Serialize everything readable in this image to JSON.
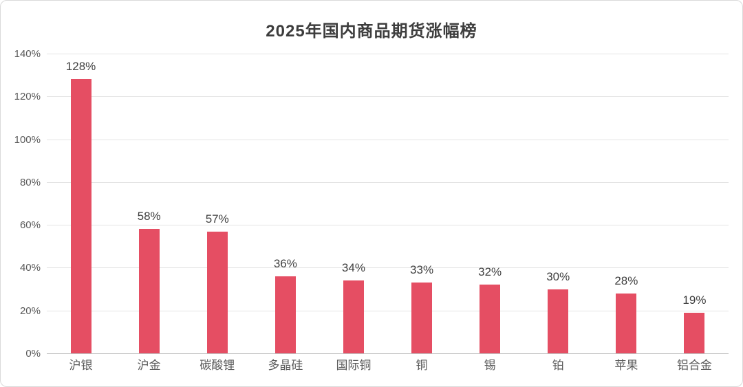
{
  "chart_data": {
    "type": "bar",
    "title": "2025年国内商品期货涨幅榜",
    "categories": [
      "沪银",
      "沪金",
      "碳酸锂",
      "多晶硅",
      "国际铜",
      "铜",
      "锡",
      "铂",
      "苹果",
      "铝合金"
    ],
    "values": [
      128,
      58,
      57,
      36,
      34,
      33,
      32,
      30,
      28,
      19
    ],
    "value_labels": [
      "128%",
      "58%",
      "57%",
      "36%",
      "34%",
      "33%",
      "32%",
      "30%",
      "28%",
      "19%"
    ],
    "xlabel": "",
    "ylabel": "",
    "ylim": [
      0,
      140
    ],
    "ytick_step": 20,
    "ytick_labels": [
      "0%",
      "20%",
      "40%",
      "60%",
      "80%",
      "100%",
      "120%",
      "140%"
    ],
    "grid": true,
    "legend": "none",
    "bar_color": "#e54e63",
    "gridline_color": "#e4e4e4",
    "baseline_color": "#c2c2c2",
    "title_color": "#3d3d3d",
    "label_color": "#404040",
    "axis_text_color": "#595959"
  }
}
